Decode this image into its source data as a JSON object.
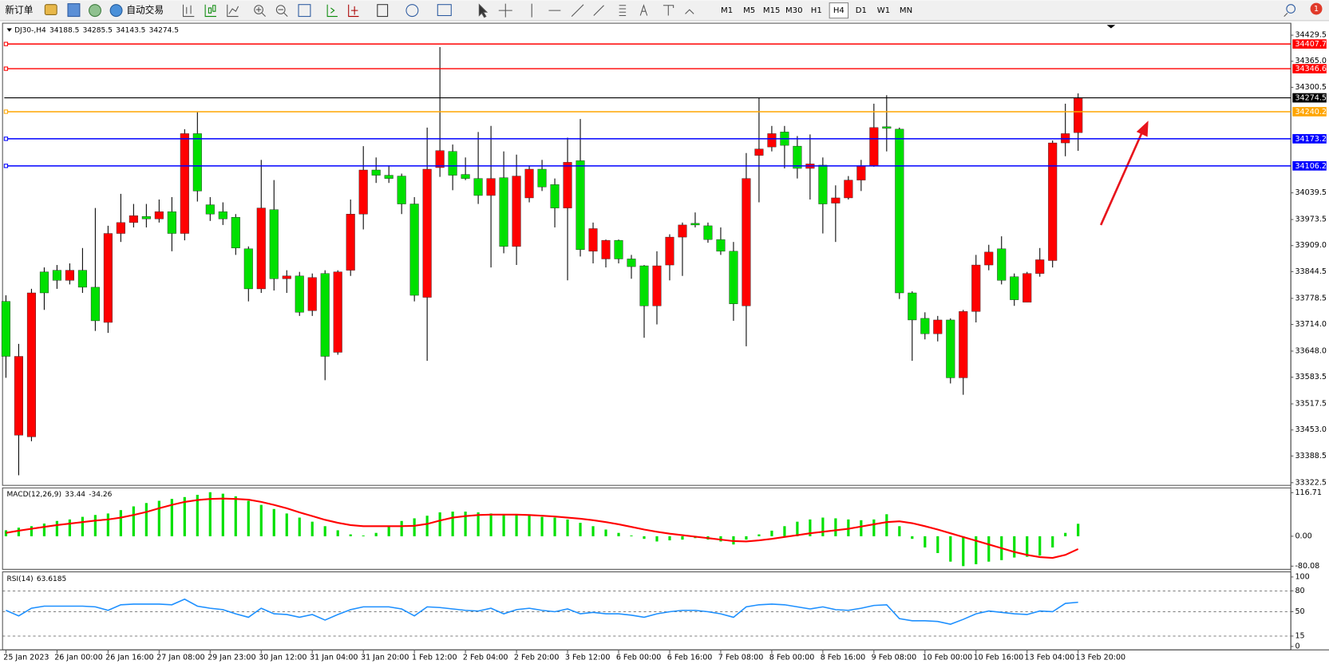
{
  "toolbar": {
    "new_order": "新订单",
    "auto_trading": "自动交易",
    "timeframes": [
      "M1",
      "M5",
      "M15",
      "M30",
      "H1",
      "H4",
      "D1",
      "W1",
      "MN"
    ],
    "active_timeframe": "H4",
    "notifications": 1
  },
  "chart_data": [
    {
      "type": "candlestick",
      "title": "DJ30-,H4",
      "up_color": "#ff0000",
      "down_color": "#00e000",
      "wick_color": "#000000",
      "categories": [
        "25 Jan 2023",
        null,
        null,
        null,
        "26 Jan 00:00",
        null,
        null,
        null,
        "26 Jan 16:00",
        null,
        null,
        null,
        "27 Jan 08:00",
        null,
        null,
        null,
        "29 Jan 23:00",
        null,
        null,
        null,
        "30 Jan 12:00",
        null,
        null,
        null,
        "31 Jan 04:00",
        null,
        null,
        null,
        "31 Jan 20:00",
        null,
        null,
        null,
        "1 Feb 12:00",
        null,
        null,
        null,
        "2 Feb 04:00",
        null,
        null,
        null,
        "2 Feb 20:00",
        null,
        null,
        null,
        "3 Feb 12:00",
        null,
        null,
        null,
        "6 Feb 00:00",
        null,
        null,
        null,
        "6 Feb 16:00",
        null,
        null,
        null,
        "7 Feb 08:00",
        null,
        null,
        null,
        "8 Feb 00:00",
        null,
        null,
        null,
        "8 Feb 16:00",
        null,
        null,
        null,
        "9 Feb 08:00",
        null,
        null,
        null,
        "10 Feb 00:00",
        null,
        null,
        null,
        "10 Feb 16:00",
        null,
        null,
        null,
        "13 Feb 04:00",
        null,
        null,
        null,
        "13 Feb 20:00"
      ],
      "ohlc": [
        [
          33771,
          33786,
          33582,
          33635
        ],
        [
          33440,
          33666,
          33341,
          33635
        ],
        [
          33436,
          33802,
          33425,
          33792
        ],
        [
          33844,
          33855,
          33750,
          33792
        ],
        [
          33848,
          33861,
          33802,
          33823
        ],
        [
          33823,
          33865,
          33813,
          33848
        ],
        [
          33848,
          33903,
          33792,
          33806
        ],
        [
          33806,
          34002,
          33698,
          33723
        ],
        [
          33719,
          33958,
          33693,
          33939
        ],
        [
          33939,
          34037,
          33918,
          33966
        ],
        [
          33966,
          34012,
          33954,
          33983
        ],
        [
          33981,
          34012,
          33954,
          33975
        ],
        [
          33975,
          34023,
          33966,
          33993
        ],
        [
          33993,
          34029,
          33895,
          33939
        ],
        [
          33939,
          34197,
          33922,
          34186
        ],
        [
          34186,
          34239,
          34018,
          34044
        ],
        [
          34010,
          34029,
          33970,
          33987
        ],
        [
          33993,
          34016,
          33960,
          33975
        ],
        [
          33979,
          33987,
          33886,
          33903
        ],
        [
          33901,
          33907,
          33771,
          33802
        ],
        [
          33802,
          34121,
          33792,
          34002
        ],
        [
          33998,
          34071,
          33798,
          33827
        ],
        [
          33827,
          33848,
          33792,
          33834
        ],
        [
          33834,
          33844,
          33735,
          33744
        ],
        [
          33748,
          33840,
          33735,
          33830
        ],
        [
          33840,
          33848,
          33576,
          33635
        ],
        [
          33645,
          33848,
          33639,
          33844
        ],
        [
          33848,
          34023,
          33834,
          33987
        ],
        [
          33987,
          34155,
          33949,
          34096
        ],
        [
          34096,
          34127,
          34064,
          34083
        ],
        [
          34083,
          34106,
          34064,
          34075
        ],
        [
          34081,
          34087,
          33987,
          34012
        ],
        [
          34012,
          34029,
          33771,
          33786
        ],
        [
          33781,
          34201,
          33624,
          34098
        ],
        [
          34102,
          34400,
          34079,
          34144
        ],
        [
          34142,
          34159,
          34046,
          34083
        ],
        [
          34085,
          34127,
          34071,
          34075
        ],
        [
          34075,
          34190,
          34012,
          34033
        ],
        [
          34033,
          34205,
          33855,
          34075
        ],
        [
          34077,
          34142,
          33890,
          33907
        ],
        [
          33907,
          34134,
          33861,
          34081
        ],
        [
          34027,
          34106,
          34016,
          34098
        ],
        [
          34098,
          34121,
          34044,
          34054
        ],
        [
          34060,
          34075,
          33954,
          34002
        ],
        [
          34002,
          34176,
          33823,
          34115
        ],
        [
          34119,
          34222,
          33882,
          33899
        ],
        [
          33895,
          33966,
          33865,
          33951
        ],
        [
          33876,
          33924,
          33855,
          33922
        ],
        [
          33922,
          33924,
          33865,
          33876
        ],
        [
          33876,
          33886,
          33827,
          33857
        ],
        [
          33859,
          33861,
          33681,
          33760
        ],
        [
          33760,
          33895,
          33714,
          33859
        ],
        [
          33861,
          33937,
          33823,
          33930
        ],
        [
          33930,
          33966,
          33834,
          33960
        ],
        [
          33964,
          33991,
          33954,
          33960
        ],
        [
          33958,
          33966,
          33916,
          33924
        ],
        [
          33924,
          33954,
          33886,
          33895
        ],
        [
          33895,
          33918,
          33723,
          33765
        ],
        [
          33760,
          34138,
          33660,
          34075
        ],
        [
          34132,
          34274,
          34016,
          34148
        ],
        [
          34153,
          34205,
          34142,
          34186
        ],
        [
          34190,
          34205,
          34100,
          34157
        ],
        [
          34155,
          34180,
          34075,
          34100
        ],
        [
          34100,
          34184,
          34023,
          34111
        ],
        [
          34108,
          34127,
          33939,
          34012
        ],
        [
          34014,
          34058,
          33918,
          34027
        ],
        [
          34027,
          34081,
          34023,
          34071
        ],
        [
          34071,
          34121,
          34044,
          34106
        ],
        [
          34106,
          34260,
          34104,
          34201
        ],
        [
          34203,
          34281,
          34142,
          34199
        ],
        [
          34197,
          34201,
          33777,
          33792
        ],
        [
          33792,
          33796,
          33624,
          33725
        ],
        [
          33729,
          33744,
          33677,
          33691
        ],
        [
          33691,
          33735,
          33672,
          33725
        ],
        [
          33725,
          33729,
          33568,
          33582
        ],
        [
          33582,
          33750,
          33540,
          33746
        ],
        [
          33746,
          33886,
          33719,
          33861
        ],
        [
          33861,
          33911,
          33848,
          33893
        ],
        [
          33901,
          33932,
          33813,
          33823
        ],
        [
          33832,
          33840,
          33760,
          33775
        ],
        [
          33769,
          33844,
          33769,
          33840
        ],
        [
          33840,
          33903,
          33832,
          33874
        ],
        [
          33872,
          34169,
          33855,
          34163
        ],
        [
          34163,
          34260,
          34130,
          34186
        ],
        [
          34188.5,
          34285.5,
          34143.5,
          34274.5
        ]
      ],
      "ylim": [
        33318,
        34457
      ],
      "yticks": [
        34429.5,
        {
          "value": 34365,
          "label": "34365.0"
        },
        34300.5,
        34039.5,
        33973.5,
        {
          "value": 33909,
          "label": "33909.0"
        },
        33844.5,
        33778.5,
        {
          "value": 33714,
          "label": "33714.0"
        },
        {
          "value": 33648,
          "label": "33648.0"
        },
        33583.5,
        33517.5,
        {
          "value": 33453,
          "label": "33453.0"
        },
        33388.5,
        33322.5
      ],
      "hlines": [
        {
          "value": 34407.7,
          "color": "#ff0000"
        },
        {
          "value": 34346.6,
          "color": "#ff0000"
        },
        {
          "value": 34274.5,
          "color": "#000000"
        },
        {
          "value": 34240.2,
          "color": "#ffa500"
        },
        {
          "value": 34173.2,
          "color": "#0000ff"
        },
        {
          "value": 34106.2,
          "color": "#0000ff"
        }
      ]
    },
    {
      "type": "macd",
      "title": "MACD(12,26,9)",
      "ylim": [
        -88.6,
        129.5
      ],
      "yticks": [
        116.71,
        {
          "value": 0,
          "label": "0.00"
        },
        -80.08
      ],
      "series": [
        {
          "style": "bar",
          "color": "#00e000",
          "values": [
            16,
            23,
            27,
            34,
            41,
            45,
            52,
            57,
            61,
            70,
            80,
            89,
            95,
            100,
            105,
            111,
            118,
            114,
            107,
            95,
            84,
            73,
            61,
            50,
            39,
            27,
            16,
            5,
            2,
            9,
            27,
            41,
            48,
            55,
            64,
            66,
            66,
            64,
            61,
            59,
            59,
            57,
            52,
            50,
            45,
            36,
            27,
            18,
            9,
            2,
            -7,
            -14,
            -11,
            -9,
            -5,
            -9,
            -14,
            -22,
            -9,
            5,
            15,
            27,
            39,
            45,
            50,
            48,
            45,
            43,
            45,
            59,
            27,
            -7,
            -30,
            -45,
            -68,
            -80,
            -75,
            -68,
            -64,
            -57,
            -55,
            -52,
            -30,
            9,
            33.44
          ]
        },
        {
          "style": "line",
          "color": "#ff0000",
          "values": [
            9,
            15,
            20,
            25,
            30,
            34,
            38,
            42,
            45,
            50,
            57,
            65,
            75,
            84,
            92,
            97,
            100,
            101,
            100,
            98,
            92,
            84,
            75,
            64,
            54,
            44,
            36,
            30,
            27,
            27,
            27,
            27,
            28,
            33,
            42,
            50,
            54,
            57,
            58,
            58,
            58,
            57,
            55,
            53,
            50,
            47,
            43,
            38,
            32,
            25,
            18,
            12,
            7,
            3,
            -1,
            -5,
            -9,
            -13,
            -14,
            -11,
            -7,
            -2,
            3,
            8,
            12,
            16,
            20,
            26,
            32,
            38,
            40,
            35,
            27,
            18,
            8,
            -2,
            -12,
            -22,
            -32,
            -42,
            -50,
            -56,
            -58,
            -50,
            -34.26
          ]
        }
      ]
    },
    {
      "type": "rsi",
      "title": "RSI(14)",
      "color": "#1e90ff",
      "ylim": [
        0,
        100
      ],
      "yticks": [
        100,
        80,
        50,
        15,
        0
      ],
      "grid": true,
      "values": [
        52,
        44,
        55,
        58,
        58,
        58,
        58,
        57,
        52,
        60,
        61,
        61,
        61,
        60,
        68,
        58,
        55,
        53,
        47,
        42,
        55,
        47,
        46,
        42,
        46,
        38,
        46,
        53,
        57,
        57,
        57,
        54,
        44,
        57,
        56,
        54,
        52,
        51,
        55,
        47,
        53,
        55,
        52,
        50,
        54,
        47,
        49,
        47,
        47,
        45,
        42,
        47,
        50,
        52,
        52,
        50,
        47,
        42,
        57,
        60,
        61,
        60,
        57,
        54,
        57,
        53,
        52,
        55,
        59,
        60,
        40,
        37,
        37,
        36,
        32,
        39,
        47,
        51,
        49,
        47,
        46,
        51,
        50,
        62,
        63.6185
      ]
    }
  ]
}
